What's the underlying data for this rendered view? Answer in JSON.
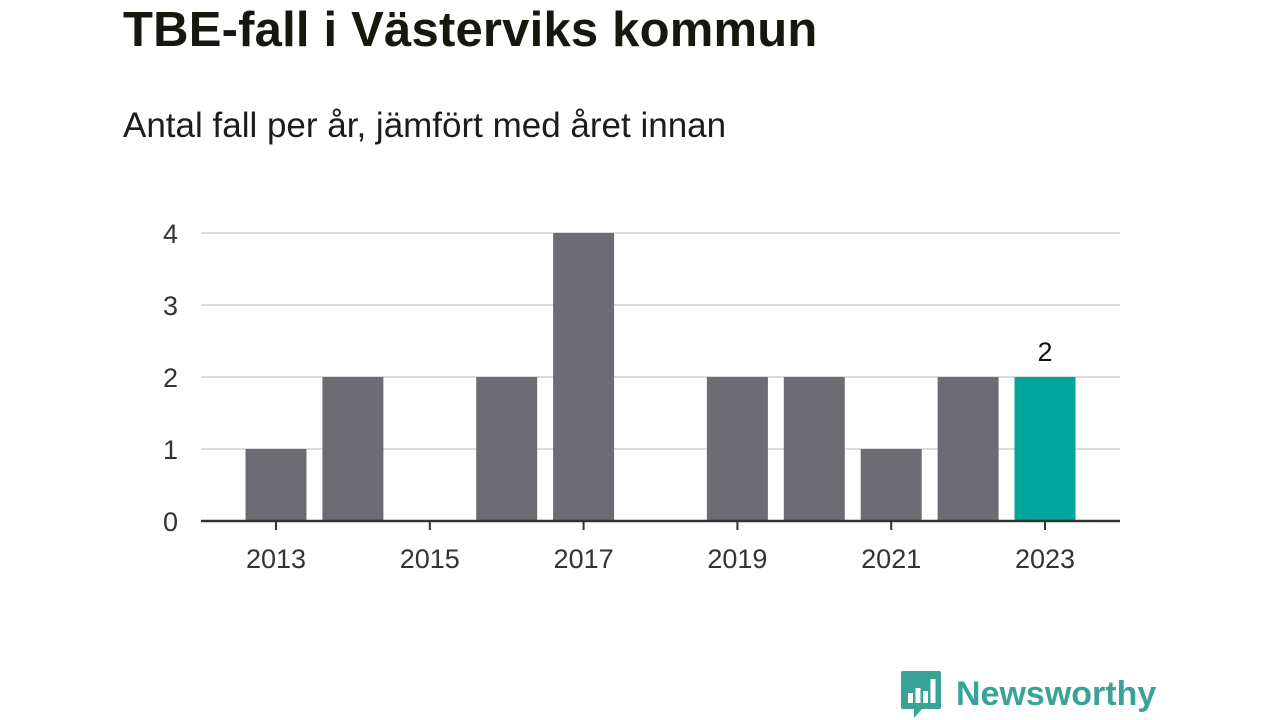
{
  "title": "TBE-fall i Västerviks kommun",
  "subtitle": "Antal fall per år, jämfört med året innan",
  "colors": {
    "bar": "#6d6c72",
    "highlight": "#00a59b",
    "grid": "#dcdcdc",
    "axis": "#333333",
    "brand": "#3aa397"
  },
  "brand": {
    "name": "Newsworthy",
    "icon": "bar-chart-speech-bubble-icon"
  },
  "chart_data": {
    "type": "bar",
    "categories": [
      "2013",
      "2014",
      "2015",
      "2016",
      "2017",
      "2018",
      "2019",
      "2020",
      "2021",
      "2022",
      "2023"
    ],
    "values": [
      1,
      2,
      0,
      2,
      4,
      0,
      2,
      2,
      1,
      2,
      2
    ],
    "x_tick_labels": [
      "2013",
      "2015",
      "2017",
      "2019",
      "2021",
      "2023"
    ],
    "y_ticks": [
      0,
      1,
      2,
      3,
      4
    ],
    "ylim": [
      0,
      4
    ],
    "grid": true,
    "highlight_category": "2023",
    "data_labels": [
      {
        "category": "2023",
        "text": "2"
      }
    ]
  }
}
